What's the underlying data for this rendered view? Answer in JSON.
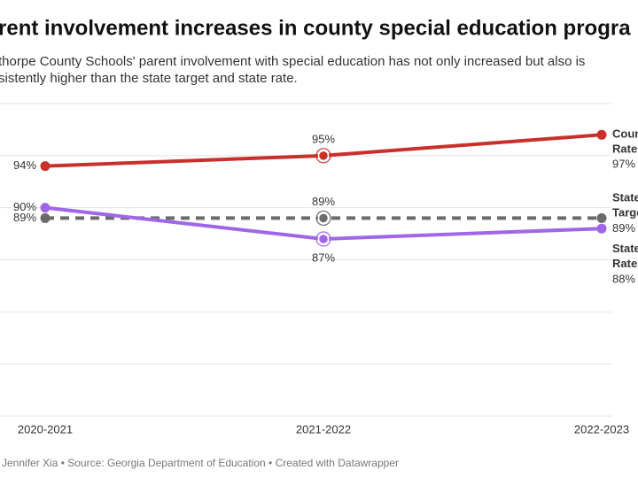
{
  "chart_data": {
    "type": "line",
    "title": "rent involvement increases in county special education progra",
    "subtitle": [
      "thorpe County Schools' parent involvement with special education has not only increased but also is",
      "sistently higher than the state target and state rate."
    ],
    "footer": "Jennifer Xia • Source: Georgia Department of Education • Created with Datawrapper",
    "categories": [
      "2020-2021",
      "2021-2022",
      "2022-2023"
    ],
    "ylim": [
      70,
      100
    ],
    "yticks": [
      70,
      75,
      80,
      85,
      90,
      95,
      100
    ],
    "grid": true,
    "series": [
      {
        "name": "County Rate",
        "color": "#c9302c",
        "dash": false,
        "values": [
          94,
          95,
          97
        ],
        "value_labels": [
          "94%",
          "95%",
          "97%"
        ]
      },
      {
        "name": "State Target",
        "color": "#6b6b6b",
        "dash": true,
        "values": [
          89,
          89,
          89
        ],
        "value_labels": [
          "89%",
          "89%",
          "89%"
        ]
      },
      {
        "name": "State Rate",
        "color": "#a066e8",
        "dash": false,
        "values": [
          90,
          87,
          88
        ],
        "value_labels": [
          "90%",
          "87%",
          "88%"
        ]
      }
    ]
  }
}
